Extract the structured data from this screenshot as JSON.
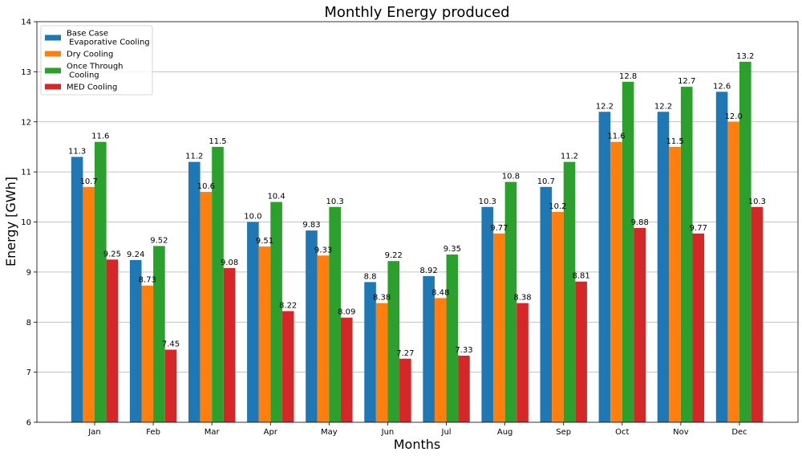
{
  "chart_data": {
    "type": "bar",
    "title": "Monthly Energy produced",
    "xlabel": "Months",
    "ylabel": "Energy [GWh]",
    "ylim": [
      6,
      14
    ],
    "yticks": [
      6,
      7,
      8,
      9,
      10,
      11,
      12,
      13,
      14
    ],
    "grid": "horizontal",
    "legend_position": "top-left",
    "categories": [
      "Jan",
      "Feb",
      "Mar",
      "Apr",
      "May",
      "Jun",
      "Jul",
      "Aug",
      "Sep",
      "Oct",
      "Nov",
      "Dec"
    ],
    "series": [
      {
        "name": "Base Case\n Evaporative Cooling",
        "color": "#1f77b4",
        "values": [
          11.3,
          9.24,
          11.2,
          10.0,
          9.83,
          8.8,
          8.92,
          10.3,
          10.7,
          12.2,
          12.2,
          12.6
        ],
        "labels": [
          "11.3",
          "9.24",
          "11.2",
          "10.0",
          "9.83",
          "8.8",
          "8.92",
          "10.3",
          "10.7",
          "12.2",
          "12.2",
          "12.6"
        ]
      },
      {
        "name": "Dry Cooling",
        "color": "#ff7f0e",
        "values": [
          10.7,
          8.73,
          10.6,
          9.51,
          9.33,
          8.38,
          8.48,
          9.77,
          10.2,
          11.6,
          11.5,
          12.0
        ],
        "labels": [
          "10.7",
          "8.73",
          "10.6",
          "9.51",
          "9.33",
          "8.38",
          "8.48",
          "9.77",
          "10.2",
          "11.6",
          "11.5",
          "12.0"
        ]
      },
      {
        "name": "Once Through\n Cooling",
        "color": "#2ca02c",
        "values": [
          11.6,
          9.52,
          11.5,
          10.4,
          10.3,
          9.22,
          9.35,
          10.8,
          11.2,
          12.8,
          12.7,
          13.2
        ],
        "labels": [
          "11.6",
          "9.52",
          "11.5",
          "10.4",
          "10.3",
          "9.22",
          "9.35",
          "10.8",
          "11.2",
          "12.8",
          "12.7",
          "13.2"
        ]
      },
      {
        "name": "MED Cooling",
        "color": "#d62728",
        "values": [
          9.25,
          7.45,
          9.08,
          8.22,
          8.09,
          7.27,
          7.33,
          8.38,
          8.81,
          9.88,
          9.77,
          10.3
        ],
        "labels": [
          "9.25",
          "7.45",
          "9.08",
          "8.22",
          "8.09",
          "7.27",
          "7.33",
          "8.38",
          "8.81",
          "9.88",
          "9.77",
          "10.3"
        ]
      }
    ]
  }
}
